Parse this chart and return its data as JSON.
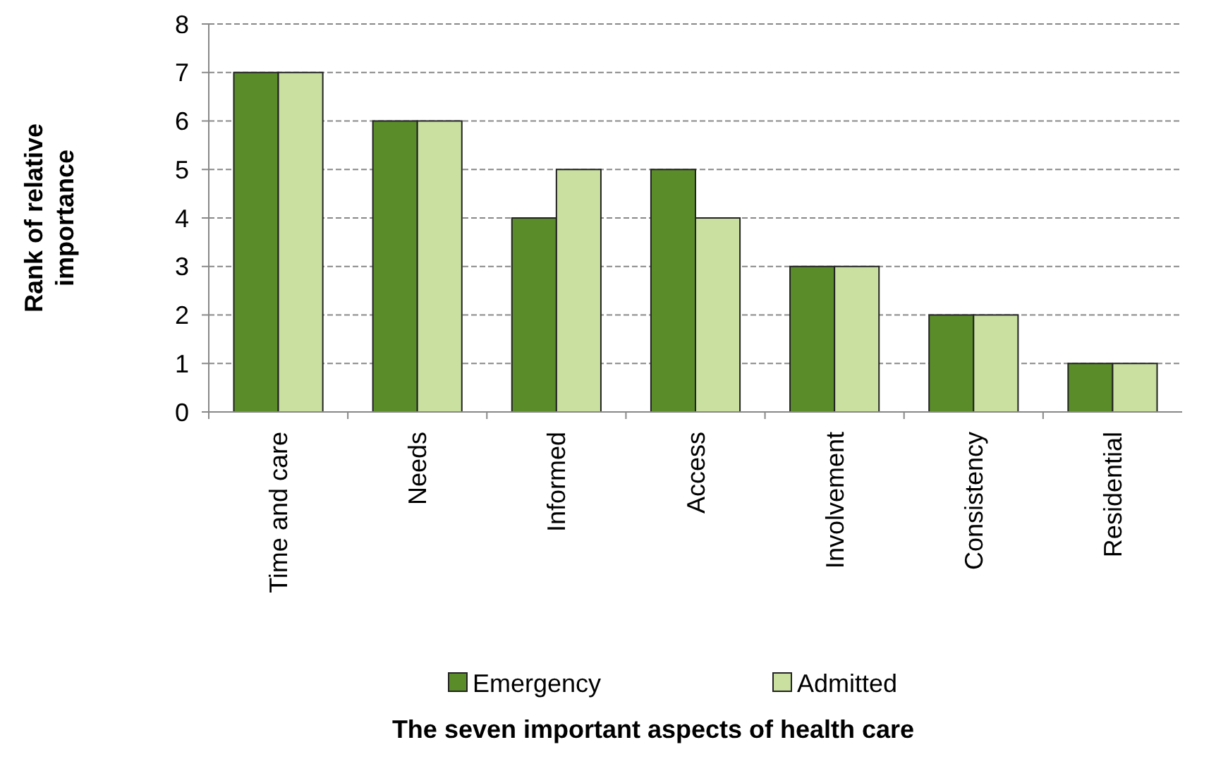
{
  "chart_data": {
    "type": "bar",
    "xlabel": "The seven important aspects of health care",
    "ylabel": "Rank of relative importance",
    "categories": [
      "Time and care",
      "Needs",
      "Informed",
      "Access",
      "Involvement",
      "Consistency",
      "Residential"
    ],
    "series": [
      {
        "name": "Emergency",
        "color": "#5b8c2a",
        "values": [
          7,
          6,
          4,
          5,
          3,
          2,
          1
        ]
      },
      {
        "name": "Admitted",
        "color": "#c9e0a0",
        "values": [
          7,
          6,
          5,
          4,
          3,
          2,
          1
        ]
      }
    ],
    "ylim": [
      0,
      8
    ],
    "yticks": [
      0,
      1,
      2,
      3,
      4,
      5,
      6,
      7,
      8
    ],
    "grid": "y",
    "legend": "bottom"
  }
}
